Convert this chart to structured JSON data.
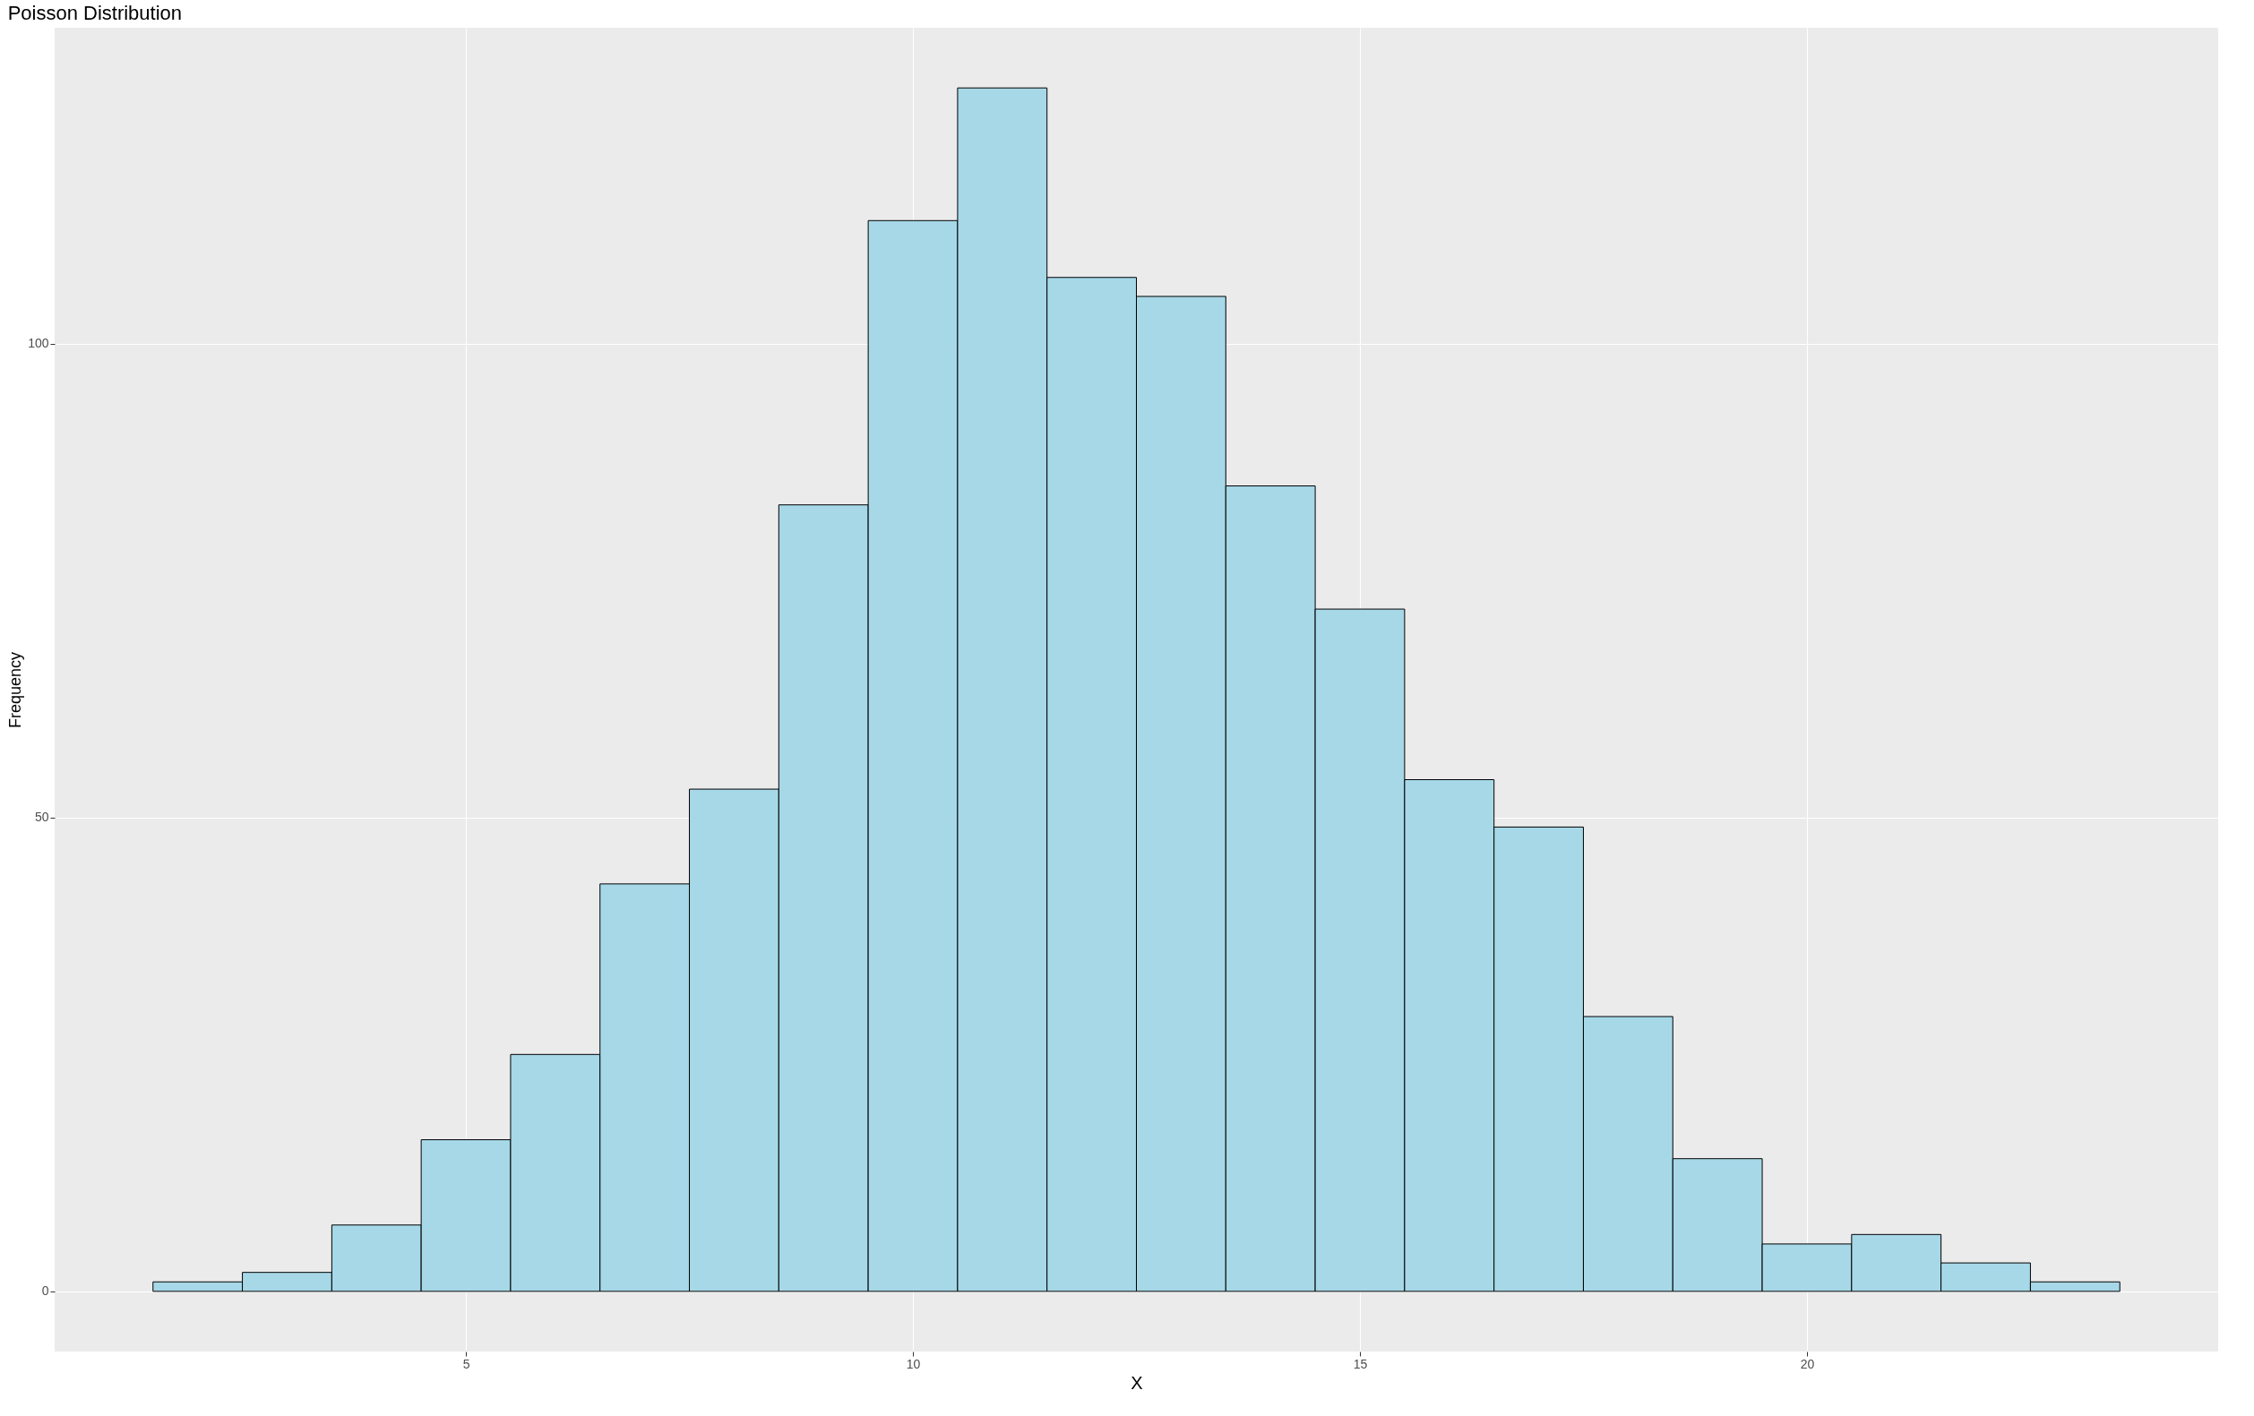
{
  "chart_data": {
    "type": "histogram",
    "title": "Poisson Distribution",
    "xlabel": "X",
    "ylabel": "Frequency",
    "bins": [
      1.5,
      2.5,
      3.5,
      4.5,
      5.5,
      6.5,
      7.5,
      8.5,
      9.5,
      10.5,
      11.5,
      12.5,
      13.5,
      14.5,
      15.5,
      16.5,
      17.5,
      18.5,
      19.5,
      20.5,
      21.5,
      22.5,
      23.5
    ],
    "values": [
      1,
      2,
      7,
      16,
      25,
      43,
      53,
      83,
      113,
      127,
      107,
      105,
      85,
      72,
      54,
      49,
      29,
      14,
      5,
      6,
      3,
      1
    ],
    "color": "#a6d8e8",
    "xlim": [
      0.4,
      24.6
    ],
    "xticks": [
      5,
      10,
      15,
      20
    ],
    "ylim": [
      -6.35,
      133.35
    ],
    "yticks": [
      0,
      50,
      100
    ],
    "grid": true
  }
}
